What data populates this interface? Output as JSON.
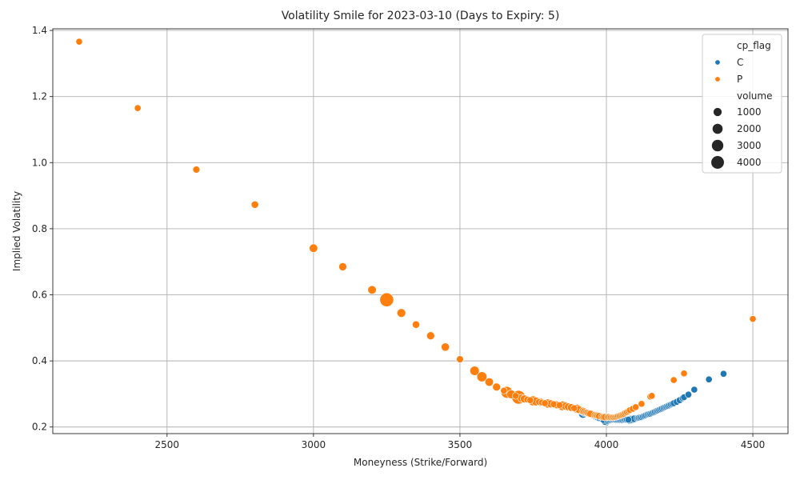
{
  "chart_data": {
    "type": "scatter",
    "title": "Volatility Smile for 2023-03-10 (Days to Expiry: 5)",
    "xlabel": "Moneyness (Strike/Forward)",
    "ylabel": "Implied Volatility",
    "xlim": [
      2110,
      4620
    ],
    "ylim": [
      0.18,
      1.405
    ],
    "xticks": [
      2500,
      3000,
      3500,
      4000,
      4500
    ],
    "yticks": [
      0.2,
      0.4,
      0.6,
      0.8,
      1.0,
      1.2,
      1.4
    ],
    "xtick_labels": [
      "2500",
      "3000",
      "3500",
      "4000",
      "4500"
    ],
    "ytick_labels": [
      "0.2",
      "0.4",
      "0.6",
      "0.8",
      "1.0",
      "1.2",
      "1.4"
    ],
    "grid": true,
    "legend_position": "top-right",
    "legend": {
      "hue_title": "cp_flag",
      "size_title": "volume",
      "size_entries": [
        {
          "label": "1000",
          "value": 1000
        },
        {
          "label": "2000",
          "value": 2000
        },
        {
          "label": "3000",
          "value": 3000
        },
        {
          "label": "4000",
          "value": 4000
        }
      ]
    },
    "colors": {
      "C": "#1f77b4",
      "P": "#ff7f0e",
      "grid": "#b0b0b0"
    },
    "series": [
      {
        "name": "C",
        "points": [
          [
            3920,
            0.24,
            1000
          ],
          [
            3925,
            0.243,
            600
          ],
          [
            3930,
            0.246,
            300
          ],
          [
            3935,
            0.243,
            300
          ],
          [
            3940,
            0.24,
            300
          ],
          [
            3945,
            0.238,
            300
          ],
          [
            3950,
            0.236,
            400
          ],
          [
            3955,
            0.234,
            300
          ],
          [
            3960,
            0.232,
            300
          ],
          [
            3965,
            0.23,
            300
          ],
          [
            3970,
            0.228,
            300
          ],
          [
            3975,
            0.227,
            300
          ],
          [
            3980,
            0.226,
            400
          ],
          [
            3985,
            0.224,
            300
          ],
          [
            3990,
            0.221,
            300
          ],
          [
            3995,
            0.216,
            400
          ],
          [
            4000,
            0.215,
            500
          ],
          [
            4005,
            0.218,
            300
          ],
          [
            4010,
            0.22,
            300
          ],
          [
            4015,
            0.221,
            300
          ],
          [
            4020,
            0.222,
            300
          ],
          [
            4025,
            0.222,
            300
          ],
          [
            4030,
            0.222,
            300
          ],
          [
            4035,
            0.221,
            300
          ],
          [
            4040,
            0.221,
            300
          ],
          [
            4045,
            0.221,
            300
          ],
          [
            4050,
            0.221,
            300
          ],
          [
            4055,
            0.221,
            300
          ],
          [
            4060,
            0.222,
            300
          ],
          [
            4065,
            0.222,
            300
          ],
          [
            4070,
            0.222,
            300
          ],
          [
            4075,
            0.222,
            300
          ],
          [
            4080,
            0.222,
            1000
          ],
          [
            4085,
            0.223,
            900
          ],
          [
            4090,
            0.224,
            600
          ],
          [
            4095,
            0.225,
            500
          ],
          [
            4100,
            0.226,
            600
          ],
          [
            4105,
            0.227,
            300
          ],
          [
            4110,
            0.228,
            300
          ],
          [
            4115,
            0.229,
            300
          ],
          [
            4120,
            0.23,
            300
          ],
          [
            4125,
            0.232,
            300
          ],
          [
            4130,
            0.234,
            300
          ],
          [
            4135,
            0.236,
            300
          ],
          [
            4140,
            0.238,
            300
          ],
          [
            4145,
            0.239,
            300
          ],
          [
            4150,
            0.24,
            300
          ],
          [
            4155,
            0.242,
            300
          ],
          [
            4160,
            0.244,
            300
          ],
          [
            4165,
            0.246,
            300
          ],
          [
            4170,
            0.248,
            300
          ],
          [
            4175,
            0.25,
            300
          ],
          [
            4180,
            0.252,
            300
          ],
          [
            4185,
            0.254,
            300
          ],
          [
            4190,
            0.256,
            300
          ],
          [
            4195,
            0.258,
            300
          ],
          [
            4200,
            0.26,
            300
          ],
          [
            4205,
            0.262,
            300
          ],
          [
            4210,
            0.264,
            300
          ],
          [
            4215,
            0.266,
            300
          ],
          [
            4220,
            0.268,
            300
          ],
          [
            4225,
            0.27,
            300
          ],
          [
            4230,
            0.272,
            300
          ],
          [
            4240,
            0.276,
            300
          ],
          [
            4250,
            0.281,
            300
          ],
          [
            4260,
            0.287,
            300
          ],
          [
            4265,
            0.29,
            300
          ],
          [
            4280,
            0.298,
            300
          ],
          [
            4300,
            0.313,
            300
          ],
          [
            4350,
            0.344,
            300
          ],
          [
            4400,
            0.361,
            300
          ]
        ]
      },
      {
        "name": "P",
        "points": [
          [
            2200,
            1.366,
            300
          ],
          [
            2400,
            1.165,
            300
          ],
          [
            2600,
            0.979,
            400
          ],
          [
            2800,
            0.873,
            500
          ],
          [
            3000,
            0.741,
            900
          ],
          [
            3100,
            0.685,
            700
          ],
          [
            3200,
            0.615,
            900
          ],
          [
            3250,
            0.585,
            4500
          ],
          [
            3300,
            0.545,
            1000
          ],
          [
            3350,
            0.51,
            500
          ],
          [
            3400,
            0.476,
            700
          ],
          [
            3450,
            0.442,
            800
          ],
          [
            3500,
            0.405,
            400
          ],
          [
            3550,
            0.37,
            1300
          ],
          [
            3575,
            0.352,
            1700
          ],
          [
            3600,
            0.336,
            900
          ],
          [
            3625,
            0.321,
            700
          ],
          [
            3650,
            0.31,
            300
          ],
          [
            3660,
            0.305,
            2700
          ],
          [
            3675,
            0.299,
            1000
          ],
          [
            3690,
            0.294,
            300
          ],
          [
            3700,
            0.29,
            4300
          ],
          [
            3710,
            0.287,
            700
          ],
          [
            3720,
            0.285,
            700
          ],
          [
            3730,
            0.283,
            300
          ],
          [
            3740,
            0.281,
            300
          ],
          [
            3750,
            0.279,
            1600
          ],
          [
            3760,
            0.277,
            1000
          ],
          [
            3770,
            0.276,
            300
          ],
          [
            3775,
            0.275,
            800
          ],
          [
            3780,
            0.274,
            300
          ],
          [
            3790,
            0.272,
            300
          ],
          [
            3800,
            0.271,
            1100
          ],
          [
            3810,
            0.27,
            700
          ],
          [
            3820,
            0.269,
            300
          ],
          [
            3825,
            0.268,
            800
          ],
          [
            3830,
            0.267,
            600
          ],
          [
            3840,
            0.266,
            300
          ],
          [
            3850,
            0.264,
            1300
          ],
          [
            3860,
            0.263,
            700
          ],
          [
            3870,
            0.261,
            600
          ],
          [
            3875,
            0.26,
            700
          ],
          [
            3880,
            0.259,
            600
          ],
          [
            3890,
            0.257,
            300
          ],
          [
            3900,
            0.255,
            1100
          ],
          [
            3905,
            0.253,
            600
          ],
          [
            3910,
            0.251,
            700
          ],
          [
            3915,
            0.249,
            700
          ],
          [
            3920,
            0.248,
            600
          ],
          [
            3925,
            0.246,
            600
          ],
          [
            3930,
            0.244,
            400
          ],
          [
            3935,
            0.243,
            400
          ],
          [
            3940,
            0.241,
            400
          ],
          [
            3945,
            0.24,
            400
          ],
          [
            3950,
            0.239,
            700
          ],
          [
            3955,
            0.237,
            500
          ],
          [
            3960,
            0.236,
            400
          ],
          [
            3965,
            0.235,
            400
          ],
          [
            3970,
            0.234,
            400
          ],
          [
            3975,
            0.233,
            400
          ],
          [
            3980,
            0.232,
            500
          ],
          [
            3985,
            0.231,
            400
          ],
          [
            3990,
            0.23,
            400
          ],
          [
            3995,
            0.23,
            400
          ],
          [
            4000,
            0.23,
            600
          ],
          [
            4005,
            0.23,
            400
          ],
          [
            4010,
            0.23,
            400
          ],
          [
            4015,
            0.229,
            300
          ],
          [
            4020,
            0.229,
            300
          ],
          [
            4025,
            0.229,
            300
          ],
          [
            4030,
            0.23,
            300
          ],
          [
            4035,
            0.231,
            300
          ],
          [
            4040,
            0.233,
            300
          ],
          [
            4045,
            0.234,
            300
          ],
          [
            4050,
            0.236,
            300
          ],
          [
            4055,
            0.238,
            300
          ],
          [
            4060,
            0.24,
            300
          ],
          [
            4065,
            0.243,
            300
          ],
          [
            4070,
            0.245,
            300
          ],
          [
            4075,
            0.248,
            300
          ],
          [
            4080,
            0.251,
            300
          ],
          [
            4090,
            0.255,
            300
          ],
          [
            4100,
            0.26,
            300
          ],
          [
            4120,
            0.27,
            300
          ],
          [
            4150,
            0.292,
            300
          ],
          [
            4155,
            0.294,
            300
          ],
          [
            4230,
            0.342,
            300
          ],
          [
            4265,
            0.362,
            300
          ],
          [
            4500,
            0.527,
            300
          ]
        ]
      }
    ]
  }
}
